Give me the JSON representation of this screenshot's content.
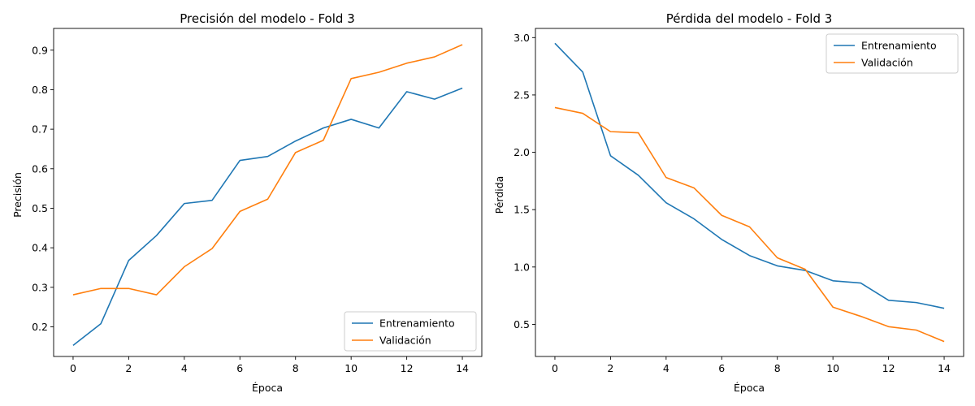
{
  "colors": {
    "train": "#1f77b4",
    "val": "#ff7f0e"
  },
  "chart_data": [
    {
      "type": "line",
      "title": "Precisión del modelo - Fold 3",
      "xlabel": "Época",
      "ylabel": "Precisión",
      "xlim": [
        -0.7,
        14.7
      ],
      "ylim": [
        0.125,
        0.955
      ],
      "xticks": [
        0,
        2,
        4,
        6,
        8,
        10,
        12,
        14
      ],
      "yticks": [
        0.2,
        0.3,
        0.4,
        0.5,
        0.6,
        0.7,
        0.8,
        0.9
      ],
      "x": [
        0,
        1,
        2,
        3,
        4,
        5,
        6,
        7,
        8,
        9,
        10,
        11,
        12,
        13,
        14
      ],
      "legend_position": "lower-right",
      "grid": false,
      "series": [
        {
          "name": "Entrenamiento",
          "color_key": "train",
          "values": [
            0.153,
            0.208,
            0.368,
            0.431,
            0.512,
            0.52,
            0.621,
            0.631,
            0.67,
            0.703,
            0.725,
            0.703,
            0.795,
            0.776,
            0.804
          ]
        },
        {
          "name": "Validación",
          "color_key": "val",
          "values": [
            0.281,
            0.297,
            0.297,
            0.281,
            0.352,
            0.398,
            0.492,
            0.523,
            0.641,
            0.672,
            0.828,
            0.844,
            0.867,
            0.883,
            0.914
          ]
        }
      ]
    },
    {
      "type": "line",
      "title": "Pérdida del modelo - Fold 3",
      "xlabel": "Época",
      "ylabel": "Pérdida",
      "xlim": [
        -0.7,
        14.7
      ],
      "ylim": [
        0.22,
        3.08
      ],
      "xticks": [
        0,
        2,
        4,
        6,
        8,
        10,
        12,
        14
      ],
      "yticks": [
        0.5,
        1.0,
        1.5,
        2.0,
        2.5,
        3.0
      ],
      "ytick_labels": [
        "0.5",
        "1.0",
        "1.5",
        "2.0",
        "2.5",
        "3.0"
      ],
      "x": [
        0,
        1,
        2,
        3,
        4,
        5,
        6,
        7,
        8,
        9,
        10,
        11,
        12,
        13,
        14
      ],
      "legend_position": "upper-right",
      "grid": false,
      "series": [
        {
          "name": "Entrenamiento",
          "color_key": "train",
          "values": [
            2.95,
            2.7,
            1.97,
            1.8,
            1.56,
            1.42,
            1.24,
            1.1,
            1.01,
            0.97,
            0.88,
            0.86,
            0.71,
            0.69,
            0.64
          ]
        },
        {
          "name": "Validación",
          "color_key": "val",
          "values": [
            2.39,
            2.34,
            2.18,
            2.17,
            1.78,
            1.69,
            1.45,
            1.35,
            1.08,
            0.98,
            0.65,
            0.57,
            0.48,
            0.45,
            0.35
          ]
        }
      ]
    }
  ]
}
